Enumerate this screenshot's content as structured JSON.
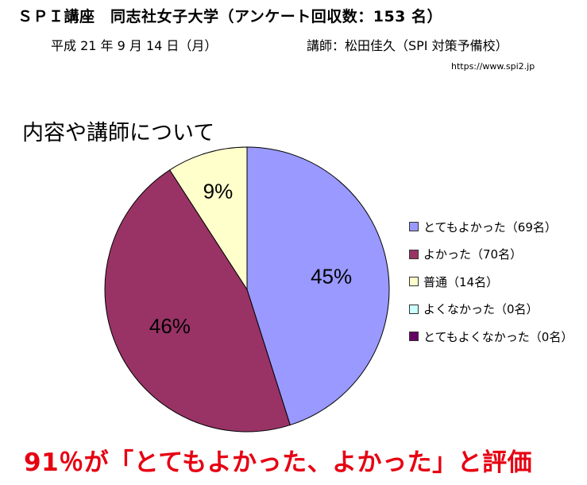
{
  "header": {
    "title": "ＳＰＩ講座　同志社女子大学（アンケート回収数：153 名）",
    "date": "平成 21 年 9 月 14 日（月）",
    "lecturer": "講師：松田佳久（SPI 対策予備校）",
    "url": "https://www.spi2.jp"
  },
  "section_title": "内容や講師について",
  "conclusion": "91％が「とてもよかった、よかった」と評価",
  "chart_data": {
    "type": "pie",
    "title": "内容や講師について",
    "total_respondents": 153,
    "start_angle": "12 o'clock, clockwise",
    "categories": [
      "とてもよかった",
      "よかった",
      "普通",
      "よくなかった",
      "とてもよくなかった"
    ],
    "values": [
      69,
      70,
      14,
      0,
      0
    ],
    "percent_labels": [
      "45%",
      "46%",
      "9%",
      "",
      ""
    ],
    "colors": [
      "#9999ff",
      "#993366",
      "#ffffcc",
      "#ccffff",
      "#660066"
    ],
    "legend_position": "right",
    "legend": [
      {
        "label": "とてもよかった（69名）",
        "color": "#9999ff"
      },
      {
        "label": "よかった（70名）",
        "color": "#993366"
      },
      {
        "label": "普通（14名）",
        "color": "#ffffcc"
      },
      {
        "label": "よくなかった（0名）",
        "color": "#ccffff"
      },
      {
        "label": "とてもよくなかった（0名）",
        "color": "#660066"
      }
    ]
  }
}
